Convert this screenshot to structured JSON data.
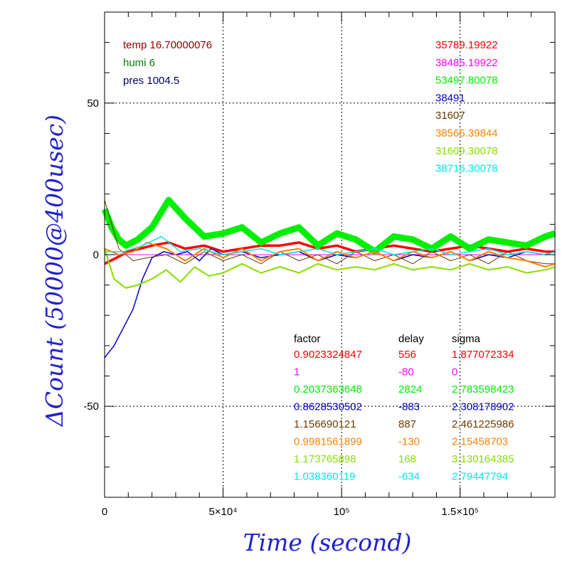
{
  "chart_data": {
    "type": "line",
    "xlabel": "Time (second)",
    "ylabel": "ΔCount (50000@400usec)",
    "xlim": [
      0,
      190000
    ],
    "ylim": [
      -80,
      80
    ],
    "x_ticks": [
      {
        "value": 0,
        "label": "0"
      },
      {
        "value": 50000,
        "label": "5×10⁴"
      },
      {
        "value": 100000,
        "label": "10⁵"
      },
      {
        "value": 150000,
        "label": "1.5×10⁵"
      }
    ],
    "y_ticks": [
      {
        "value": -50,
        "label": "-50"
      },
      {
        "value": 0,
        "label": "0"
      },
      {
        "value": 50,
        "label": "50"
      }
    ],
    "grid": true,
    "env": [
      {
        "text": "temp 16.70000076",
        "color": "#8b0000"
      },
      {
        "text": "humi 6",
        "color": "#008000"
      },
      {
        "text": "pres 1004.5",
        "color": "#00006b"
      }
    ],
    "stats_header": {
      "factor": "factor",
      "delay": "delay",
      "sigma": "sigma"
    },
    "series": [
      {
        "color": "#ff0000",
        "value_label": "35789.19922",
        "factor": "0.9023324847",
        "delay": "556",
        "sigma": "1.877072334",
        "x": [
          0,
          5000,
          10000,
          15000,
          20000,
          27000,
          34000,
          42000,
          50000,
          58000,
          66000,
          74000,
          82000,
          90000,
          98000,
          106000,
          114000,
          122000,
          130000,
          138000,
          146000,
          154000,
          162000,
          170000,
          178000,
          186000,
          190000
        ],
        "y": [
          -3,
          -1,
          1,
          2,
          3,
          4,
          2,
          3,
          1,
          2,
          3,
          3,
          4,
          2,
          3,
          1,
          2,
          3,
          2,
          1,
          2,
          3,
          2,
          1,
          2,
          1,
          1
        ]
      },
      {
        "color": "#ff00ff",
        "value_label": "38485.19922",
        "factor": "1",
        "delay": "-80",
        "sigma": "0",
        "x": [
          0,
          190000
        ],
        "y": [
          0,
          0
        ]
      },
      {
        "color": "#00ee00",
        "value_label": "53497.80078",
        "factor": "0.2037363648",
        "delay": "2824",
        "sigma": "2.783598423",
        "x": [
          0,
          3000,
          6000,
          9000,
          14000,
          20000,
          27000,
          34000,
          42000,
          50000,
          58000,
          66000,
          74000,
          82000,
          90000,
          98000,
          106000,
          114000,
          122000,
          130000,
          138000,
          146000,
          154000,
          162000,
          170000,
          178000,
          186000,
          190000
        ],
        "y": [
          15,
          9,
          5,
          3,
          5,
          9,
          18,
          12,
          6,
          7,
          9,
          4,
          7,
          9,
          3,
          7,
          5,
          1,
          6,
          5,
          2,
          6,
          2,
          5,
          4,
          3,
          6,
          7
        ]
      },
      {
        "color": "#0000cc",
        "value_label": "38491",
        "factor": "0.8628530502",
        "delay": "-883",
        "sigma": "2.308178902",
        "x": [
          0,
          4000,
          8000,
          12000,
          16000,
          20000,
          25000,
          30000,
          35000,
          40000,
          45000,
          50000,
          58000,
          66000,
          74000,
          82000,
          90000,
          98000,
          106000,
          114000,
          122000,
          130000,
          138000,
          146000,
          154000,
          162000,
          170000,
          178000,
          186000,
          190000
        ],
        "y": [
          -34,
          -30,
          -24,
          -18,
          -8,
          -1,
          1,
          0,
          1,
          -2,
          2,
          0,
          1,
          -1,
          0,
          1,
          -2,
          0,
          -1,
          1,
          -2,
          0,
          -1,
          1,
          -2,
          0,
          -1,
          1,
          0,
          1
        ]
      },
      {
        "color": "#6b3a00",
        "value_label": "31607",
        "factor": "1.156690121",
        "delay": "887",
        "sigma": "2.461225986",
        "x": [
          0,
          6000,
          12000,
          18000,
          26000,
          34000,
          42000,
          50000,
          58000,
          66000,
          74000,
          82000,
          90000,
          98000,
          106000,
          114000,
          122000,
          130000,
          138000,
          146000,
          154000,
          162000,
          170000,
          178000,
          186000,
          190000
        ],
        "y": [
          18,
          2,
          -2,
          -1,
          0,
          -3,
          1,
          -2,
          0,
          -3,
          1,
          -2,
          0,
          -3,
          1,
          -2,
          0,
          -3,
          1,
          -2,
          0,
          -3,
          1,
          -2,
          -3,
          -3
        ]
      },
      {
        "color": "#ff8000",
        "value_label": "38565.39844",
        "factor": "0.9981561899",
        "delay": "-130",
        "sigma": "2.15458703",
        "x": [
          0,
          6000,
          12000,
          18000,
          26000,
          34000,
          42000,
          50000,
          58000,
          66000,
          74000,
          82000,
          90000,
          98000,
          106000,
          114000,
          122000,
          130000,
          138000,
          146000,
          154000,
          162000,
          170000,
          178000,
          186000,
          190000
        ],
        "y": [
          2,
          0,
          1,
          4,
          2,
          -2,
          2,
          -1,
          2,
          -2,
          1,
          2,
          -2,
          1,
          -1,
          1,
          -2,
          1,
          -1,
          1,
          -2,
          1,
          -1,
          -2,
          -4,
          -3
        ]
      },
      {
        "color": "#88dd00",
        "value_label": "31609.30078",
        "factor": "1.173765898",
        "delay": "168",
        "sigma": "3.130164385",
        "x": [
          0,
          4000,
          9000,
          14000,
          20000,
          26000,
          32000,
          38000,
          44000,
          50000,
          58000,
          66000,
          74000,
          82000,
          90000,
          98000,
          106000,
          114000,
          122000,
          130000,
          138000,
          146000,
          154000,
          162000,
          170000,
          178000,
          186000,
          190000
        ],
        "y": [
          2,
          -8,
          -11,
          -10,
          -8,
          -5,
          -9,
          -4,
          -7,
          -6,
          -3,
          -6,
          -4,
          -6,
          -3,
          -5,
          -4,
          -5,
          -3,
          -5,
          -4,
          -5,
          -3,
          -5,
          -4,
          -6,
          -5,
          -4
        ]
      },
      {
        "color": "#00e5ee",
        "value_label": "38716.30078",
        "factor": "1.038360119",
        "delay": "-634",
        "sigma": "2.79447794",
        "x": [
          0,
          8000,
          16000,
          24000,
          32000,
          40000,
          50000,
          58000,
          66000,
          74000,
          82000,
          90000,
          98000,
          106000,
          114000,
          122000,
          130000,
          138000,
          146000,
          154000,
          162000,
          170000,
          178000,
          186000,
          190000
        ],
        "y": [
          1,
          1,
          3,
          6,
          1,
          2,
          0,
          1,
          2,
          0,
          1,
          2,
          0,
          1,
          2,
          0,
          1,
          2,
          0,
          1,
          2,
          0,
          1,
          0,
          1
        ]
      }
    ]
  }
}
